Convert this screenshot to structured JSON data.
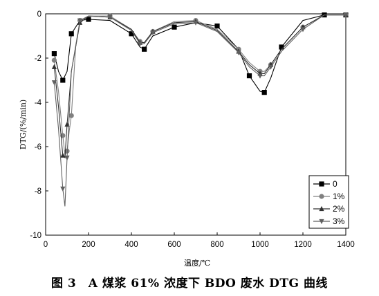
{
  "chart_data": {
    "type": "line",
    "title": "",
    "xlabel": "温度/℃",
    "ylabel": "DTG/(%/min)",
    "xlim": [
      0,
      1400
    ],
    "ylim": [
      -10,
      0
    ],
    "xticks": [
      0,
      200,
      400,
      600,
      800,
      1000,
      1200,
      1400
    ],
    "yticks": [
      0,
      -2,
      -4,
      -6,
      -8,
      -10
    ],
    "grid": false,
    "legend_position": "bottom-right",
    "series": [
      {
        "name": "0",
        "color": "#000000",
        "marker": "square",
        "x": [
          40,
          60,
          80,
          100,
          120,
          160,
          200,
          300,
          400,
          440,
          460,
          500,
          600,
          700,
          800,
          900,
          950,
          1000,
          1020,
          1050,
          1100,
          1200,
          1300,
          1400
        ],
        "y": [
          -1.8,
          -2.6,
          -3.0,
          -2.6,
          -0.9,
          -0.3,
          -0.25,
          -0.3,
          -0.9,
          -1.5,
          -1.6,
          -1.0,
          -0.6,
          -0.4,
          -0.55,
          -1.6,
          -2.8,
          -3.5,
          -3.55,
          -2.9,
          -1.5,
          -0.3,
          -0.05,
          -0.05
        ]
      },
      {
        "name": "1%",
        "color": "#808080",
        "marker": "circle",
        "x": [
          40,
          60,
          80,
          90,
          100,
          110,
          120,
          140,
          160,
          200,
          300,
          400,
          440,
          460,
          500,
          600,
          700,
          800,
          900,
          950,
          1000,
          1020,
          1050,
          1100,
          1200,
          1300,
          1400
        ],
        "y": [
          -2.1,
          -3.5,
          -5.5,
          -6.4,
          -6.2,
          -5.3,
          -4.6,
          -1.5,
          -0.3,
          -0.1,
          -0.1,
          -0.7,
          -1.25,
          -1.3,
          -0.8,
          -0.35,
          -0.3,
          -0.7,
          -1.6,
          -2.2,
          -2.6,
          -2.6,
          -2.3,
          -1.6,
          -0.6,
          -0.05,
          -0.05
        ]
      },
      {
        "name": "2%",
        "color": "#303030",
        "marker": "triangle-up",
        "x": [
          40,
          60,
          80,
          90,
          100,
          120,
          160,
          200,
          300,
          400,
          440,
          460,
          500,
          600,
          700,
          800,
          900,
          950,
          1000,
          1020,
          1050,
          1100,
          1200,
          1300,
          1400
        ],
        "y": [
          -2.4,
          -4.2,
          -6.4,
          -6.5,
          -5.0,
          -2.6,
          -0.4,
          -0.1,
          -0.15,
          -0.7,
          -1.3,
          -1.3,
          -0.8,
          -0.4,
          -0.35,
          -0.75,
          -1.7,
          -2.3,
          -2.7,
          -2.7,
          -2.3,
          -1.6,
          -0.6,
          -0.05,
          -0.05
        ]
      },
      {
        "name": "3%",
        "color": "#606060",
        "marker": "triangle-down",
        "x": [
          40,
          60,
          80,
          90,
          100,
          120,
          160,
          200,
          300,
          400,
          440,
          460,
          500,
          600,
          700,
          800,
          900,
          950,
          1000,
          1020,
          1050,
          1100,
          1200,
          1300,
          1400
        ],
        "y": [
          -3.1,
          -5.2,
          -7.9,
          -8.7,
          -6.5,
          -2.6,
          -0.3,
          -0.1,
          -0.15,
          -0.75,
          -1.35,
          -1.35,
          -0.85,
          -0.45,
          -0.4,
          -0.8,
          -1.75,
          -2.4,
          -2.8,
          -2.8,
          -2.4,
          -1.7,
          -0.7,
          -0.05,
          -0.05
        ]
      }
    ]
  },
  "caption": "图 3　A 煤浆 61% 浓度下 BDO 废水 DTG 曲线"
}
